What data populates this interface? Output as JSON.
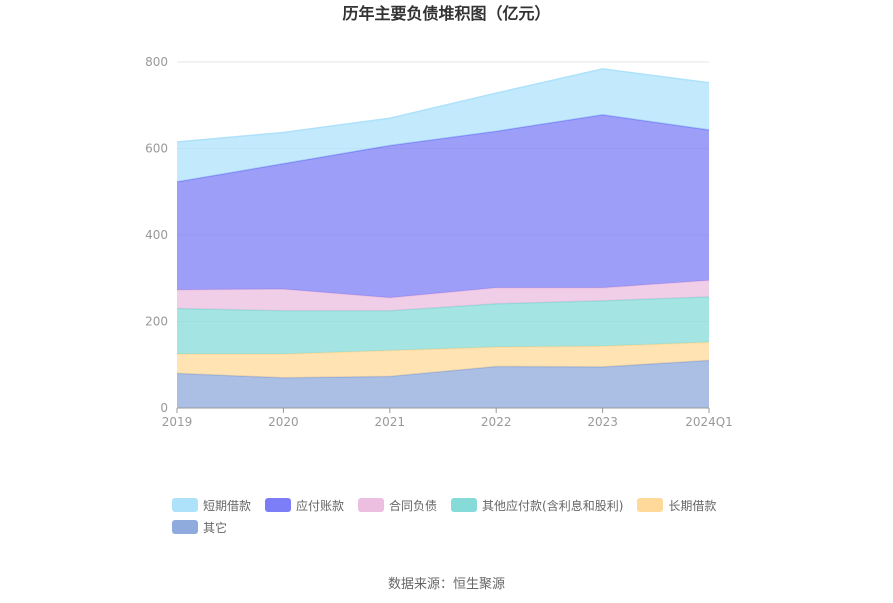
{
  "chart_data": {
    "type": "area",
    "stacked": true,
    "title": "历年主要负债堆积图（亿元）",
    "categories": [
      "2019",
      "2020",
      "2021",
      "2022",
      "2023",
      "2024Q1"
    ],
    "ylim": [
      0,
      800
    ],
    "yticks": [
      0,
      200,
      400,
      600,
      800
    ],
    "grid": true,
    "legend_position": "bottom",
    "series": [
      {
        "name": "其它",
        "color": "#8faadc",
        "values": [
          80,
          70,
          73,
          96,
          95,
          110
        ]
      },
      {
        "name": "长期借款",
        "color": "#ffd99a",
        "values": [
          45,
          55,
          60,
          45,
          48,
          42
        ]
      },
      {
        "name": "其他应付款(含利息和股利)",
        "color": "#86dbd8",
        "values": [
          105,
          100,
          92,
          100,
          105,
          105
        ]
      },
      {
        "name": "合同负债",
        "color": "#ecbedf",
        "values": [
          43,
          50,
          30,
          37,
          30,
          38
        ]
      },
      {
        "name": "应付账款",
        "color": "#7b7ef6",
        "values": [
          250,
          290,
          352,
          362,
          400,
          348
        ]
      },
      {
        "name": "短期借款",
        "color": "#aee2fb",
        "values": [
          92,
          72,
          63,
          88,
          106,
          109
        ]
      }
    ],
    "legend_order": [
      "短期借款",
      "应付账款",
      "合同负债",
      "其他应付款(含利息和股利)",
      "长期借款",
      "其它"
    ]
  },
  "footer": {
    "source": "数据来源：恒生聚源"
  }
}
